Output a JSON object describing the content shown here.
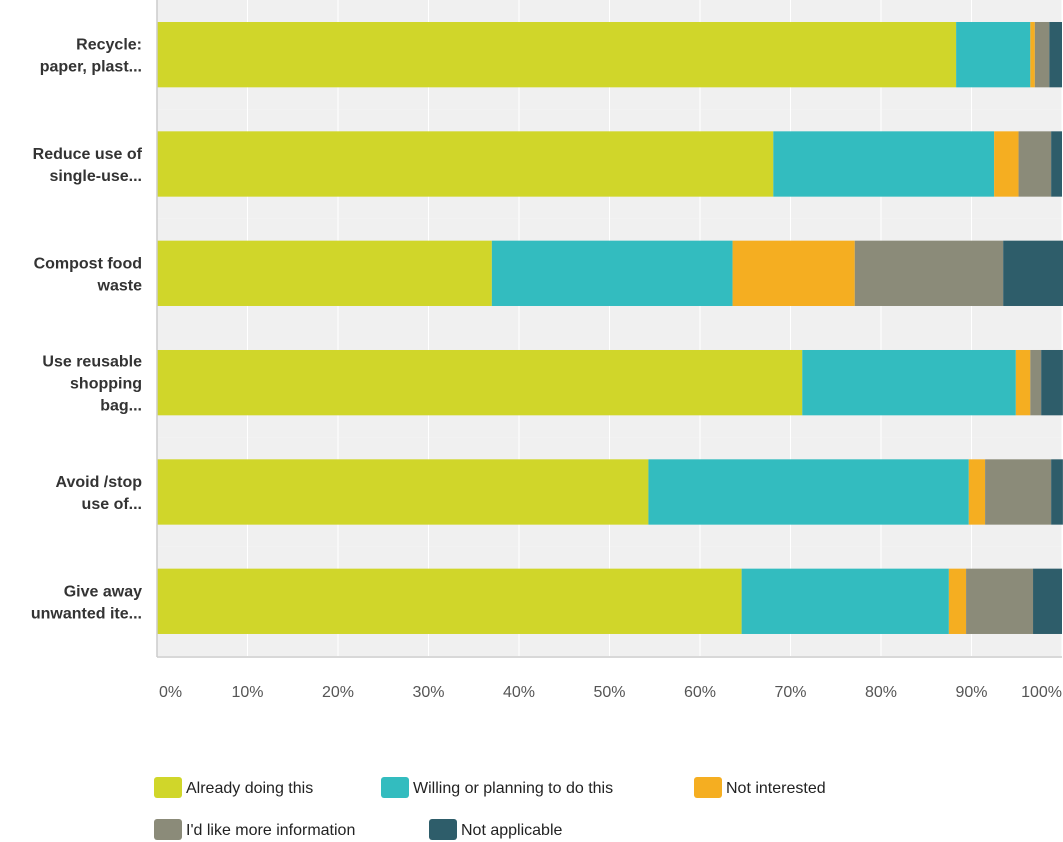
{
  "chart_data": {
    "type": "bar",
    "orientation": "horizontal",
    "stacked": true,
    "title": "",
    "xlabel": "",
    "ylabel": "",
    "xlim": [
      0,
      100
    ],
    "grid": true,
    "legend_position": "bottom",
    "categories": [
      [
        "Recycle:",
        "paper, plast..."
      ],
      [
        "Reduce use of",
        "single-use..."
      ],
      [
        "Compost food",
        "waste"
      ],
      [
        "Use reusable",
        "shopping",
        "bag..."
      ],
      [
        "Avoid /stop",
        "use of..."
      ],
      [
        "Give away",
        "unwanted ite..."
      ]
    ],
    "x_ticks": [
      "0%",
      "10%",
      "20%",
      "30%",
      "40%",
      "50%",
      "60%",
      "70%",
      "80%",
      "90%",
      "100%"
    ],
    "series": [
      {
        "name": "Already doing this",
        "color": "#d0d62a",
        "values": [
          88.3,
          68.1,
          37.0,
          71.3,
          54.3,
          64.6
        ]
      },
      {
        "name": "Willing or planning to do this",
        "color": "#33bcbf",
        "values": [
          8.2,
          24.4,
          26.6,
          23.6,
          35.4,
          22.9
        ]
      },
      {
        "name": "Not interested",
        "color": "#f5ae21",
        "values": [
          0.5,
          2.7,
          13.5,
          1.6,
          1.8,
          1.9
        ]
      },
      {
        "name": "I'd like more information",
        "color": "#8b8b79",
        "values": [
          1.6,
          3.6,
          16.4,
          1.2,
          7.3,
          7.4
        ]
      },
      {
        "name": "Not applicable",
        "color": "#2e5d6a",
        "values": [
          1.4,
          1.2,
          6.8,
          2.4,
          1.3,
          3.2
        ]
      }
    ]
  }
}
